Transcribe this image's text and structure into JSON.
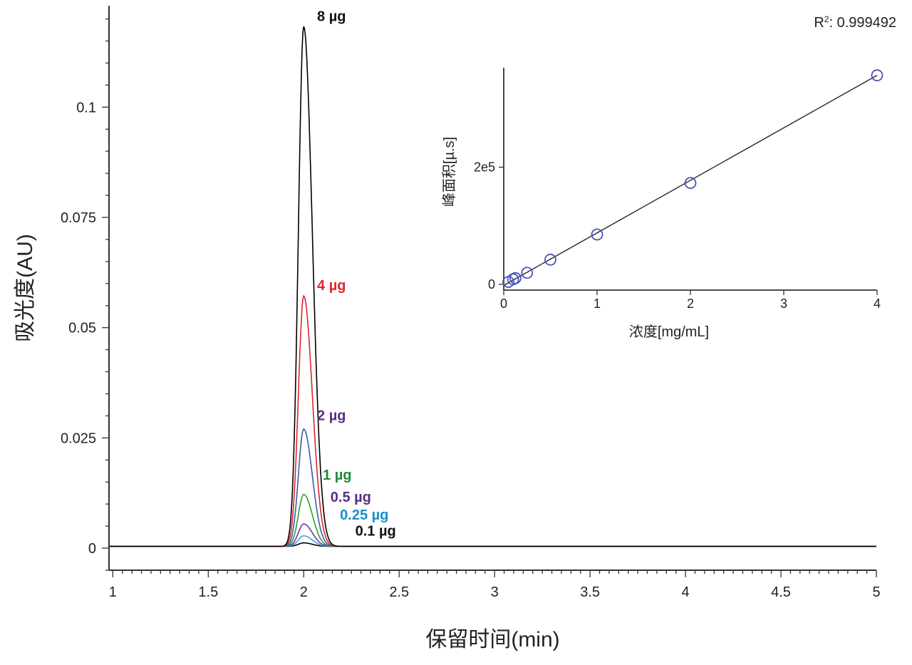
{
  "chart_data": [
    {
      "type": "line",
      "xlabel": "保留时间(min)",
      "ylabel": "吸光度(AU)",
      "xlim": [
        0.98,
        5.0
      ],
      "ylim": [
        -0.005,
        0.123
      ],
      "xticks": [
        1,
        1.5,
        2,
        2.5,
        3,
        3.5,
        4,
        4.5,
        5
      ],
      "xtick_labels": [
        "1",
        "1.5",
        "2",
        "2.5",
        "3",
        "3.5",
        "4",
        "4.5",
        "5"
      ],
      "yticks": [
        0,
        0.025,
        0.05,
        0.075,
        0.1
      ],
      "ytick_labels": [
        "0",
        "0.025",
        "0.05",
        "0.075",
        "0.1"
      ],
      "grid": false,
      "series": [
        {
          "name": "0.1 µg",
          "peak_time": 2.0,
          "peak_height": 0.0012,
          "baseline": 0.0004,
          "color": "#000000",
          "label_color": "#111111",
          "label_x": 2.27,
          "label_y": 0.0028
        },
        {
          "name": "0.25 µg",
          "peak_time": 2.0,
          "peak_height": 0.0028,
          "baseline": 0.0004,
          "color": "#3aa6d6",
          "label_color": "#1a8fcf",
          "label_x": 2.19,
          "label_y": 0.0065
        },
        {
          "name": "0.5 µg",
          "peak_time": 2.0,
          "peak_height": 0.0055,
          "baseline": 0.0004,
          "color": "#6a3d9a",
          "label_color": "#5b2a86",
          "label_x": 2.14,
          "label_y": 0.0105
        },
        {
          "name": "1 µg",
          "peak_time": 2.0,
          "peak_height": 0.0122,
          "baseline": 0.0004,
          "color": "#2ca02c",
          "label_color": "#1f8a3a",
          "label_x": 2.1,
          "label_y": 0.0155
        },
        {
          "name": "2 µg",
          "peak_time": 2.0,
          "peak_height": 0.027,
          "baseline": 0.0004,
          "color": "#3b5ba9",
          "label_color": "#5b2a86",
          "label_x": 2.07,
          "label_y": 0.029
        },
        {
          "name": "4 µg",
          "peak_time": 2.0,
          "peak_height": 0.0572,
          "baseline": 0.0004,
          "color": "#e0242b",
          "label_color": "#e0242b",
          "label_x": 2.07,
          "label_y": 0.0585
        },
        {
          "name": "8 µg",
          "peak_time": 2.0,
          "peak_height": 0.1183,
          "baseline": 0.0004,
          "color": "#000000",
          "label_color": "#111111",
          "label_x": 2.07,
          "label_y": 0.1195
        }
      ]
    },
    {
      "type": "scatter",
      "xlabel": "浓度[mg/mL]",
      "ylabel": "峰面积[µ.s]",
      "xlim": [
        0,
        4
      ],
      "ylim": [
        -10000,
        370000
      ],
      "xticks": [
        0,
        1,
        2,
        3,
        4
      ],
      "xtick_labels": [
        "0",
        "1",
        "2",
        "3",
        "4"
      ],
      "yticks": [
        0,
        200000
      ],
      "ytick_labels": [
        "0",
        "2e5"
      ],
      "grid": false,
      "points": [
        {
          "x": 0.05,
          "y": 4000
        },
        {
          "x": 0.1,
          "y": 8500
        },
        {
          "x": 0.125,
          "y": 10500
        },
        {
          "x": 0.25,
          "y": 19500
        },
        {
          "x": 0.5,
          "y": 42000
        },
        {
          "x": 1.0,
          "y": 85000
        },
        {
          "x": 2.0,
          "y": 173000
        },
        {
          "x": 4.0,
          "y": 357000
        }
      ],
      "fit_line": {
        "x": [
          0,
          4
        ],
        "y": [
          -2000,
          357000
        ]
      },
      "point_color": "#4a55b8",
      "line_color": "#333333",
      "r2_label": "R",
      "r2_superscript": "2",
      "r2_value": ": 0.999492"
    }
  ]
}
